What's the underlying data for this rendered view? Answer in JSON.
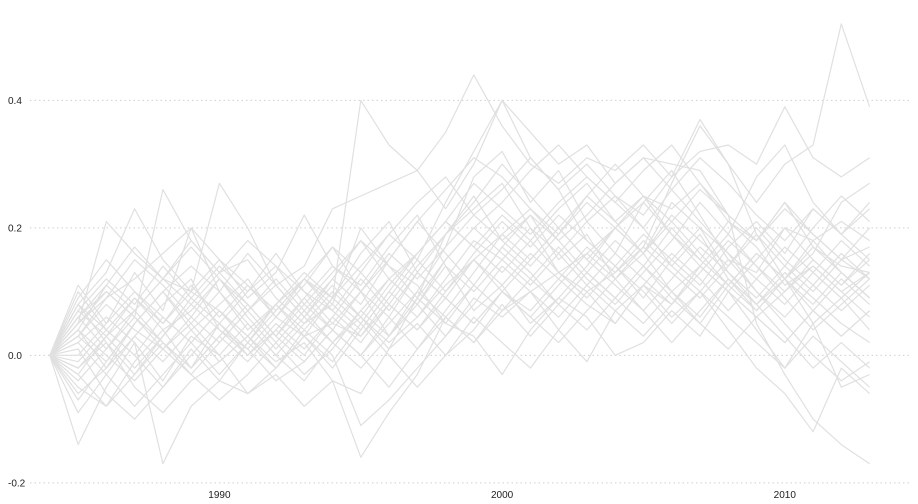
{
  "chart_data": {
    "type": "line",
    "title": "",
    "xlabel": "",
    "ylabel": "",
    "xlim": [
      1983.3,
      2014.5
    ],
    "ylim": [
      -0.205,
      0.545
    ],
    "x_ticks": [
      {
        "value": 1990,
        "label": "1990"
      },
      {
        "value": 2000,
        "label": "2000"
      },
      {
        "value": 2010,
        "label": "2010"
      }
    ],
    "y_ticks": [
      {
        "value": -0.2,
        "label": "-0.2"
      },
      {
        "value": 0.0,
        "label": "0.0"
      },
      {
        "value": 0.2,
        "label": "0.2"
      },
      {
        "value": 0.4,
        "label": "0.4"
      }
    ],
    "grid": {
      "x": false,
      "y": true,
      "style": "dotted"
    },
    "legend": "none",
    "line_color": "#e0e0e0",
    "x": [
      1984,
      1985,
      1986,
      1987,
      1988,
      1989,
      1990,
      1991,
      1992,
      1993,
      1994,
      1995,
      1996,
      1997,
      1998,
      1999,
      2000,
      2001,
      2002,
      2003,
      2004,
      2005,
      2006,
      2007,
      2008,
      2009,
      2010,
      2011,
      2012,
      2013
    ],
    "series": [
      {
        "values": [
          0,
          0.11,
          0.05,
          0.13,
          0.07,
          0.2,
          0.1,
          0.04,
          0.08,
          0.12,
          0.09,
          0.4,
          0.33,
          0.29,
          0.35,
          0.44,
          0.36,
          0.3,
          0.27,
          0.31,
          0.29,
          0.33,
          0.28,
          0.37,
          0.3,
          0.24,
          0.3,
          0.33,
          0.52,
          0.39
        ]
      },
      {
        "values": [
          0,
          -0.14,
          -0.05,
          0.02,
          -0.17,
          -0.08,
          -0.04,
          -0.06,
          -0.02,
          0.03,
          0.05,
          0.03,
          0.09,
          0.15,
          0.24,
          0.32,
          0.4,
          0.35,
          0.3,
          0.33,
          0.27,
          0.31,
          0.3,
          0.29,
          0.22,
          0.05,
          -0.03,
          -0.1,
          -0.14,
          -0.17
        ]
      },
      {
        "values": [
          0,
          0.05,
          0.21,
          0.16,
          0.12,
          0.1,
          0.27,
          0.2,
          0.11,
          0.14,
          0.23,
          0.25,
          0.27,
          0.29,
          0.23,
          0.3,
          0.4,
          0.31,
          0.26,
          0.3,
          0.25,
          0.22,
          0.28,
          0.32,
          0.33,
          0.3,
          0.39,
          0.31,
          0.28,
          0.31
        ]
      },
      {
        "values": [
          0,
          0.08,
          0.13,
          0.23,
          0.15,
          0.1,
          0.07,
          0.03,
          -0.01,
          0.02,
          -0.04,
          -0.06,
          0.01,
          0.09,
          0.19,
          0.23,
          0.27,
          0.2,
          0.13,
          0.1,
          0.13,
          0.17,
          0.27,
          0.36,
          0.3,
          0.19,
          0.12,
          0.16,
          0.24,
          0.27
        ]
      },
      {
        "values": [
          0,
          -0.09,
          -0.03,
          0.03,
          0.08,
          0.12,
          0.04,
          0.01,
          0.06,
          0.11,
          0.17,
          0.1,
          0.03,
          0.1,
          0.17,
          0.28,
          0.32,
          0.24,
          0.29,
          0.21,
          0.16,
          0.24,
          0.29,
          0.22,
          0.15,
          0.13,
          0.2,
          0.18,
          0.13,
          0.09
        ]
      },
      {
        "values": [
          0,
          0.06,
          0.1,
          0.06,
          0.26,
          0.18,
          0.13,
          0.15,
          0.09,
          0.05,
          0.08,
          0.2,
          0.14,
          0.11,
          0.05,
          0.03,
          -0.03,
          0.04,
          0.09,
          0.06,
          0.0,
          0.02,
          0.07,
          0.03,
          0.1,
          0.04,
          -0.02,
          0.05,
          -0.05,
          -0.03
        ]
      },
      {
        "values": [
          0,
          0.02,
          0.06,
          0.02,
          -0.04,
          0.03,
          0.0,
          -0.06,
          -0.03,
          -0.08,
          -0.04,
          -0.16,
          -0.09,
          -0.03,
          0.06,
          0.02,
          0.07,
          0.1,
          0.13,
          0.16,
          0.2,
          0.25,
          0.23,
          0.27,
          0.21,
          0.18,
          0.24,
          0.17,
          0.14,
          0.13
        ]
      },
      {
        "values": [
          0,
          0.03,
          0.09,
          0.12,
          0.16,
          0.2,
          0.15,
          0.09,
          0.13,
          0.22,
          0.14,
          0.11,
          0.17,
          0.22,
          0.14,
          0.07,
          0.11,
          0.05,
          0.09,
          0.14,
          0.2,
          0.16,
          0.1,
          0.14,
          0.19,
          0.28,
          0.33,
          0.24,
          0.19,
          0.15
        ]
      },
      {
        "values": [
          0,
          -0.02,
          0.02,
          -0.05,
          -0.09,
          -0.04,
          -0.01,
          0.03,
          -0.02,
          0.04,
          0.0,
          -0.11,
          -0.07,
          -0.02,
          0.03,
          0.09,
          0.06,
          0.1,
          0.04,
          -0.01,
          0.07,
          0.11,
          0.06,
          0.1,
          0.04,
          -0.02,
          -0.06,
          -0.12,
          -0.02,
          -0.06
        ]
      },
      {
        "values": [
          0,
          0.04,
          -0.02,
          0.05,
          0.1,
          0.04,
          0.08,
          0.12,
          0.06,
          0.03,
          0.09,
          0.16,
          0.21,
          0.13,
          0.19,
          0.25,
          0.18,
          0.22,
          0.15,
          0.19,
          0.12,
          0.16,
          0.24,
          0.2,
          0.13,
          0.08,
          0.12,
          0.05,
          0.09,
          0.04
        ]
      },
      {
        "values": [
          0,
          0.07,
          0.12,
          0.08,
          0.14,
          0.09,
          0.05,
          0.1,
          0.16,
          0.1,
          0.07,
          0.13,
          0.19,
          0.24,
          0.28,
          0.22,
          0.26,
          0.31,
          0.26,
          0.18,
          0.14,
          0.19,
          0.15,
          0.11,
          0.17,
          0.21,
          0.16,
          0.23,
          0.19,
          0.23
        ]
      },
      {
        "values": [
          0,
          -0.05,
          -0.08,
          -0.01,
          0.04,
          -0.02,
          0.05,
          0.0,
          0.04,
          0.09,
          0.04,
          0.0,
          0.06,
          0.13,
          0.09,
          0.15,
          0.1,
          0.07,
          0.12,
          0.08,
          0.05,
          0.11,
          0.08,
          0.14,
          0.1,
          0.06,
          0.02,
          0.07,
          0.03,
          0.07
        ]
      },
      {
        "values": [
          0,
          0.1,
          0.04,
          0.09,
          0.04,
          0.07,
          0.12,
          0.06,
          0.01,
          0.06,
          0.12,
          0.18,
          0.12,
          0.16,
          0.21,
          0.17,
          0.13,
          0.18,
          0.23,
          0.27,
          0.21,
          0.25,
          0.19,
          0.15,
          0.21,
          0.17,
          0.11,
          0.14,
          0.1,
          0.13
        ]
      },
      {
        "values": [
          0,
          0.01,
          -0.06,
          -0.1,
          -0.05,
          0.01,
          -0.04,
          0.02,
          0.08,
          0.03,
          -0.02,
          0.04,
          0.1,
          0.06,
          0.12,
          0.18,
          0.15,
          0.11,
          0.16,
          0.21,
          0.25,
          0.2,
          0.14,
          0.19,
          0.12,
          0.08,
          0.13,
          0.09,
          0.05,
          0.02
        ]
      },
      {
        "values": [
          0,
          0.05,
          0.09,
          0.15,
          0.11,
          0.06,
          0.02,
          0.07,
          0.02,
          -0.03,
          0.01,
          0.07,
          0.03,
          0.08,
          0.15,
          0.2,
          0.24,
          0.29,
          0.33,
          0.28,
          0.24,
          0.29,
          0.33,
          0.27,
          0.22,
          0.18,
          0.24,
          0.19,
          0.15,
          0.17
        ]
      },
      {
        "values": [
          0,
          -0.03,
          0.03,
          0.07,
          0.02,
          -0.03,
          -0.07,
          -0.03,
          0.02,
          0.07,
          0.12,
          0.08,
          0.15,
          0.21,
          0.16,
          0.11,
          0.07,
          0.12,
          0.08,
          0.13,
          0.18,
          0.14,
          0.09,
          0.05,
          0.11,
          0.16,
          0.12,
          0.18,
          0.21,
          0.18
        ]
      },
      {
        "values": [
          0,
          0.08,
          0.02,
          -0.03,
          0.03,
          0.09,
          0.14,
          0.1,
          0.14,
          0.08,
          0.04,
          0.1,
          0.06,
          0.01,
          0.07,
          0.13,
          0.19,
          0.15,
          0.2,
          0.15,
          0.11,
          0.07,
          0.12,
          0.17,
          0.13,
          0.09,
          0.14,
          0.2,
          0.25,
          0.21
        ]
      },
      {
        "values": [
          0,
          0.03,
          0.08,
          0.04,
          0.01,
          0.05,
          0.1,
          0.16,
          0.11,
          0.06,
          0.11,
          0.06,
          0.02,
          0.06,
          0.11,
          0.15,
          0.19,
          0.23,
          0.18,
          0.22,
          0.27,
          0.31,
          0.26,
          0.21,
          0.16,
          0.1,
          0.05,
          0.0,
          -0.04,
          -0.01
        ]
      },
      {
        "values": [
          0,
          -0.07,
          -0.01,
          0.05,
          0.1,
          0.05,
          0.0,
          0.05,
          0.0,
          -0.04,
          0.02,
          0.07,
          0.12,
          0.08,
          0.03,
          0.08,
          0.14,
          0.1,
          0.06,
          0.11,
          0.07,
          0.03,
          0.08,
          0.13,
          0.18,
          0.14,
          0.1,
          0.15,
          0.11,
          0.16
        ]
      },
      {
        "values": [
          0,
          0.04,
          0.11,
          0.17,
          0.12,
          0.18,
          0.13,
          0.08,
          0.03,
          0.09,
          0.14,
          0.1,
          0.15,
          0.21,
          0.26,
          0.31,
          0.28,
          0.23,
          0.19,
          0.25,
          0.21,
          0.16,
          0.22,
          0.18,
          0.14,
          0.2,
          0.15,
          0.11,
          0.07,
          0.11
        ]
      },
      {
        "values": [
          0,
          -0.01,
          0.04,
          0.0,
          -0.05,
          0.0,
          0.05,
          0.01,
          -0.04,
          -0.01,
          0.04,
          0.0,
          -0.05,
          0.01,
          0.06,
          0.02,
          0.08,
          0.03,
          0.08,
          0.04,
          0.09,
          0.05,
          0.1,
          0.06,
          0.12,
          0.07,
          0.12,
          0.08,
          0.13,
          0.09
        ]
      },
      {
        "values": [
          0,
          0.06,
          0.01,
          0.07,
          0.12,
          0.08,
          0.13,
          0.18,
          0.14,
          0.1,
          0.05,
          0.1,
          0.16,
          0.12,
          0.17,
          0.22,
          0.18,
          0.14,
          0.19,
          0.24,
          0.2,
          0.16,
          0.21,
          0.26,
          0.22,
          0.18,
          0.23,
          0.19,
          0.15,
          0.2
        ]
      },
      {
        "values": [
          0,
          -0.04,
          0.01,
          0.06,
          0.01,
          -0.03,
          0.02,
          0.07,
          0.12,
          0.07,
          0.02,
          0.06,
          0.01,
          0.05,
          0.0,
          0.04,
          0.1,
          0.06,
          0.11,
          0.16,
          0.12,
          0.07,
          0.02,
          0.07,
          0.12,
          0.08,
          0.03,
          -0.02,
          0.02,
          -0.02
        ]
      },
      {
        "values": [
          0,
          0.09,
          0.15,
          0.1,
          0.05,
          0.11,
          0.06,
          0.11,
          0.06,
          0.12,
          0.07,
          0.03,
          0.08,
          0.14,
          0.19,
          0.24,
          0.3,
          0.25,
          0.2,
          0.25,
          0.3,
          0.25,
          0.21,
          0.16,
          0.11,
          0.16,
          0.12,
          0.07,
          0.03,
          0.07
        ]
      },
      {
        "values": [
          0,
          0.02,
          -0.03,
          -0.08,
          -0.03,
          0.02,
          0.07,
          0.02,
          0.07,
          0.12,
          0.17,
          0.13,
          0.08,
          0.04,
          0.09,
          0.05,
          0.1,
          0.15,
          0.2,
          0.15,
          0.2,
          0.24,
          0.19,
          0.14,
          0.1,
          0.06,
          0.1,
          0.14,
          0.1,
          0.06
        ]
      },
      {
        "values": [
          0,
          0.05,
          0.1,
          0.06,
          0.02,
          -0.02,
          0.03,
          -0.01,
          0.04,
          0.0,
          0.06,
          0.12,
          0.07,
          0.13,
          0.09,
          0.05,
          0.1,
          0.06,
          0.02,
          0.07,
          0.12,
          0.17,
          0.13,
          0.09,
          0.14,
          0.19,
          0.14,
          0.1,
          0.15,
          0.12
        ]
      },
      {
        "values": [
          0,
          -0.06,
          -0.02,
          0.03,
          -0.01,
          0.04,
          -0.01,
          0.03,
          0.08,
          0.04,
          0.09,
          0.05,
          0.11,
          0.16,
          0.21,
          0.17,
          0.22,
          0.18,
          0.13,
          0.09,
          0.14,
          0.1,
          0.05,
          0.1,
          0.06,
          0.02,
          -0.02,
          0.03,
          -0.01,
          -0.05
        ]
      },
      {
        "values": [
          0,
          0.07,
          0.03,
          0.09,
          0.05,
          0.1,
          0.15,
          0.11,
          0.07,
          0.12,
          0.08,
          0.04,
          0.1,
          0.16,
          0.21,
          0.27,
          0.23,
          0.19,
          0.24,
          0.28,
          0.24,
          0.2,
          0.26,
          0.31,
          0.27,
          0.22,
          0.18,
          0.23,
          0.19,
          0.24
        ]
      },
      {
        "values": [
          0,
          0.0,
          0.05,
          0.1,
          0.06,
          0.02,
          -0.03,
          0.02,
          -0.02,
          0.03,
          -0.01,
          0.05,
          0.0,
          -0.05,
          0.0,
          0.06,
          0.02,
          -0.02,
          0.04,
          0.1,
          0.05,
          0.11,
          0.16,
          0.12,
          0.07,
          0.12,
          0.08,
          0.13,
          0.18,
          0.14
        ]
      },
      {
        "values": [
          0,
          0.04,
          0.0,
          -0.04,
          0.01,
          0.06,
          0.12,
          0.08,
          0.03,
          0.08,
          0.13,
          0.18,
          0.14,
          0.09,
          0.15,
          0.2,
          0.16,
          0.12,
          0.17,
          0.12,
          0.08,
          0.13,
          0.18,
          0.24,
          0.19,
          0.14,
          0.09,
          0.04,
          0.08,
          0.12
        ]
      },
      {
        "values": [
          0,
          -0.02,
          0.03,
          -0.02,
          0.03,
          0.08,
          0.04,
          0.0,
          0.05,
          0.01,
          0.06,
          0.02,
          0.08,
          0.04,
          0.1,
          0.15,
          0.11,
          0.16,
          0.12,
          0.17,
          0.13,
          0.18,
          0.14,
          0.1,
          0.15,
          0.1,
          0.06,
          0.11,
          0.16,
          0.12
        ]
      },
      {
        "values": [
          0,
          0.06,
          0.11,
          0.07,
          0.12,
          0.17,
          0.12,
          0.07,
          0.11,
          0.06,
          0.02,
          -0.02,
          0.03,
          0.09,
          0.05,
          0.11,
          0.17,
          0.13,
          0.08,
          0.13,
          0.09,
          0.14,
          0.2,
          0.15,
          0.11,
          0.07,
          0.12,
          0.17,
          0.13,
          0.09
        ]
      },
      {
        "values": [
          0,
          0.03,
          -0.01,
          0.05,
          0.1,
          0.14,
          0.1,
          0.05,
          0.0,
          0.05,
          0.1,
          0.06,
          0.12,
          0.08,
          0.14,
          0.1,
          0.15,
          0.2,
          0.16,
          0.11,
          0.16,
          0.12,
          0.08,
          0.14,
          0.1,
          0.15,
          0.2,
          0.15,
          0.11,
          0.15
        ]
      },
      {
        "values": [
          0,
          -0.03,
          -0.08,
          -0.03,
          0.02,
          -0.02,
          0.03,
          0.08,
          0.03,
          -0.01,
          0.04,
          0.0,
          0.05,
          0.1,
          0.06,
          0.11,
          0.17,
          0.22,
          0.18,
          0.13,
          0.09,
          0.14,
          0.1,
          0.05,
          0.01,
          0.06,
          0.02,
          0.07,
          0.12,
          0.08
        ]
      },
      {
        "values": [
          0,
          0.08,
          0.04,
          0.0,
          0.06,
          0.02,
          0.07,
          0.03,
          0.08,
          0.13,
          0.09,
          0.14,
          0.19,
          0.15,
          0.1,
          0.16,
          0.21,
          0.17,
          0.22,
          0.18,
          0.14,
          0.09,
          0.15,
          0.2,
          0.16,
          0.12,
          0.17,
          0.13,
          0.09,
          0.13
        ]
      }
    ]
  }
}
